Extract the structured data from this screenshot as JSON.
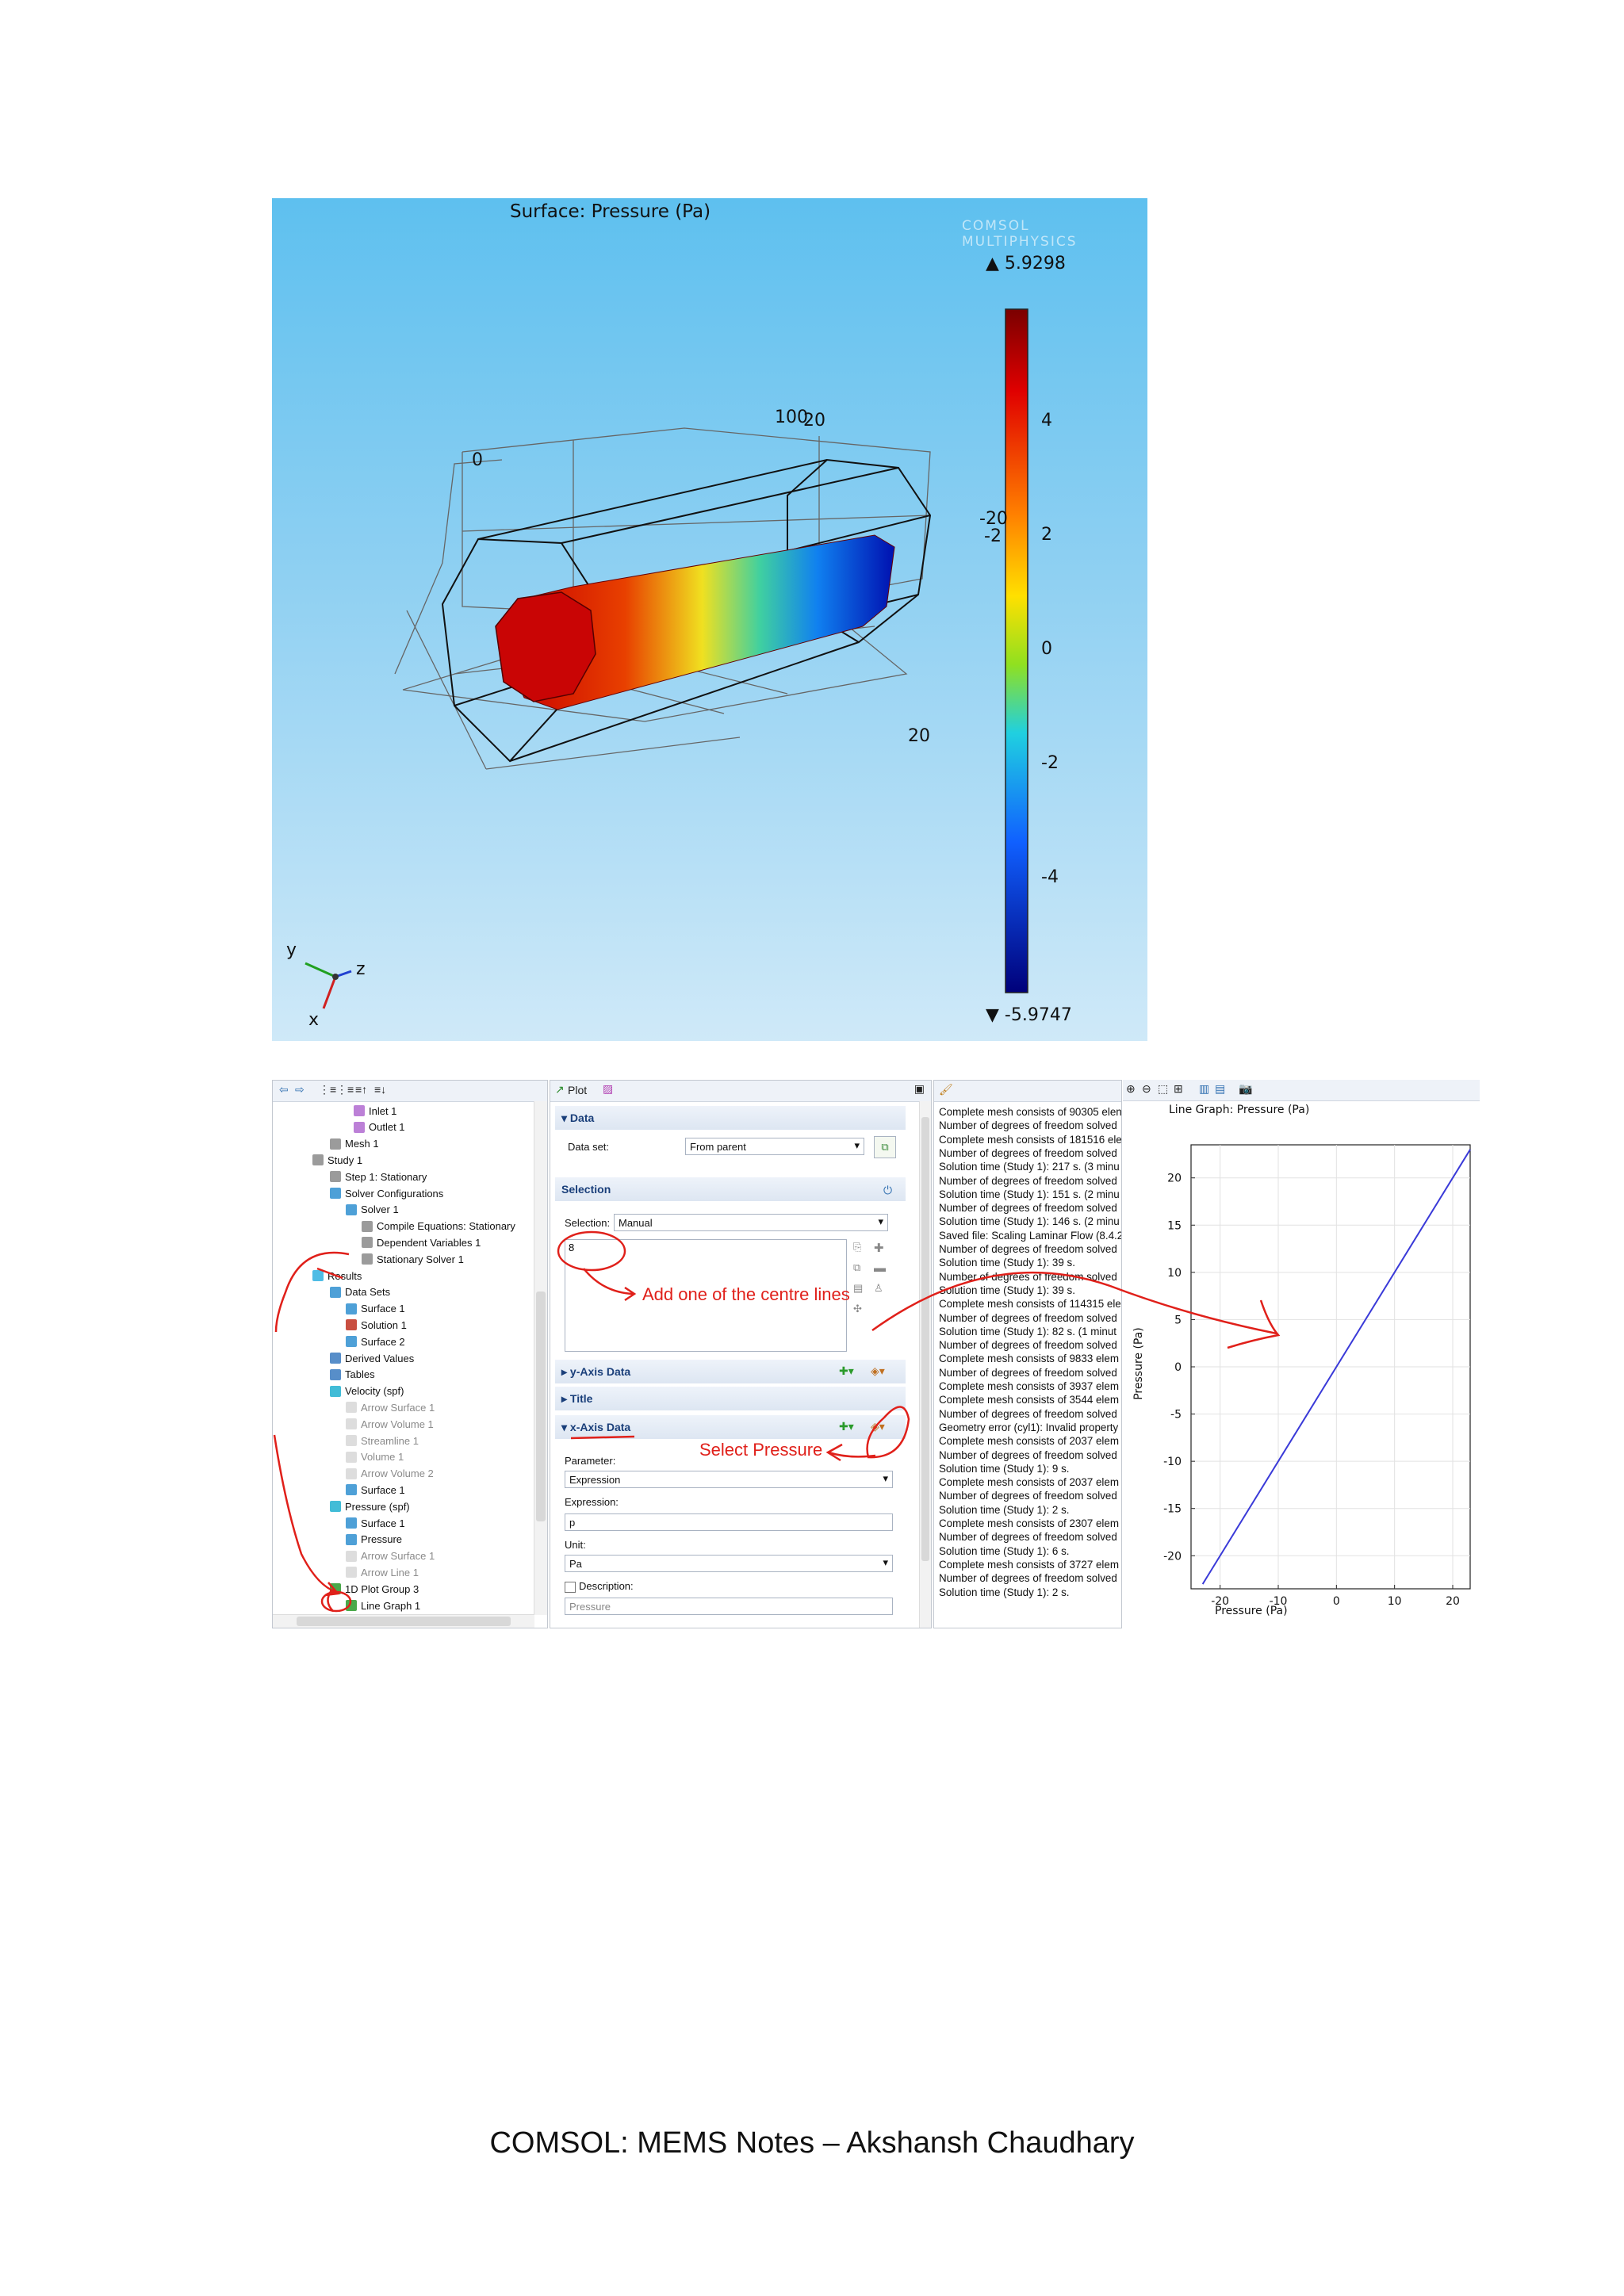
{
  "surface_plot": {
    "title": "Surface: Pressure (Pa)",
    "logo_text": "COMSOL MULTIPHYSICS",
    "max_label": "▲ 5.9298",
    "min_label": "▼ -5.9747",
    "colorbar_ticks": [
      "4",
      "2",
      "0",
      "-2",
      "-4"
    ],
    "axis_labels": {
      "zero": "0",
      "hundred": "100",
      "twenty_top": "20",
      "neg_twenty": "-20",
      "neg_two": "-2",
      "twenty_right": "20"
    },
    "triad": {
      "y": "y",
      "z": "z",
      "x": "x"
    }
  },
  "model_tree": {
    "items": [
      {
        "label": "Inlet 1",
        "dim": false
      },
      {
        "label": "Outlet 1",
        "dim": false
      },
      {
        "label": "Mesh 1",
        "dim": false
      },
      {
        "label": "Study 1",
        "dim": false
      },
      {
        "label": "Step 1: Stationary",
        "dim": false
      },
      {
        "label": "Solver Configurations",
        "dim": false
      },
      {
        "label": "Solver 1",
        "dim": false
      },
      {
        "label": "Compile Equations: Stationary",
        "dim": false
      },
      {
        "label": "Dependent Variables 1",
        "dim": false
      },
      {
        "label": "Stationary Solver 1",
        "dim": false
      },
      {
        "label": "Results",
        "dim": false
      },
      {
        "label": "Data Sets",
        "dim": false
      },
      {
        "label": "Surface 1",
        "dim": false
      },
      {
        "label": "Solution 1",
        "dim": false
      },
      {
        "label": "Surface 2",
        "dim": false
      },
      {
        "label": "Derived Values",
        "dim": false
      },
      {
        "label": "Tables",
        "dim": false
      },
      {
        "label": "Velocity (spf)",
        "dim": false
      },
      {
        "label": "Arrow Surface 1",
        "dim": true
      },
      {
        "label": "Arrow Volume 1",
        "dim": true
      },
      {
        "label": "Streamline 1",
        "dim": true
      },
      {
        "label": "Volume 1",
        "dim": true
      },
      {
        "label": "Arrow Volume 2",
        "dim": true
      },
      {
        "label": "Surface 1",
        "dim": false
      },
      {
        "label": "Pressure (spf)",
        "dim": false
      },
      {
        "label": "Surface 1",
        "dim": false
      },
      {
        "label": "Pressure",
        "dim": false
      },
      {
        "label": "Arrow Surface 1",
        "dim": true
      },
      {
        "label": "Arrow Line 1",
        "dim": true
      },
      {
        "label": "1D Plot Group 3",
        "dim": false
      },
      {
        "label": "Line Graph 1",
        "dim": false
      }
    ]
  },
  "settings": {
    "title": "Plot",
    "data_section": "Data",
    "dataset_label": "Data set:",
    "dataset_value": "From parent",
    "selection_section": "Selection",
    "selection_label": "Selection:",
    "selection_value": "Manual",
    "selection_entry": "8",
    "y_axis_section": "y-Axis Data",
    "title_section": "Title",
    "x_axis_section": "x-Axis Data",
    "parameter_label": "Parameter:",
    "parameter_value": "Expression",
    "expression_label": "Expression:",
    "expression_value": "p",
    "unit_label": "Unit:",
    "unit_value": "Pa",
    "description_label": "Description:",
    "description_value": "Pressure"
  },
  "annotations": {
    "centre_lines": "Add one of the centre lines",
    "select_pressure": "Select Pressure"
  },
  "log": {
    "lines": [
      "Complete mesh consists of 90305 elen",
      "Number of degrees of freedom solved",
      "Complete mesh consists of 181516 ele",
      "Number of degrees of freedom solved",
      "Solution time (Study 1): 217 s. (3 minu",
      "Number of degrees of freedom solved",
      "Solution time (Study 1): 151 s. (2 minu",
      "Number of degrees of freedom solved",
      "Solution time (Study 1): 146 s. (2 minu",
      "Saved file: Scaling Laminar Flow (8.4.2",
      "Number of degrees of freedom solved",
      "Solution time (Study 1): 39 s.",
      "Number of degrees of freedom solved",
      "Solution time (Study 1): 39 s.",
      "Complete mesh consists of 114315 ele",
      "Number of degrees of freedom solved",
      "Solution time (Study 1): 82 s. (1 minut",
      "Number of degrees of freedom solved",
      "Complete mesh consists of 9833 elem",
      "Number of degrees of freedom solved",
      "Complete mesh consists of 3937 elem",
      "Complete mesh consists of 3544 elem",
      "Number of degrees of freedom solved",
      "Geometry error (cyl1): Invalid property",
      "Complete mesh consists of 2037 elem",
      "Number of degrees of freedom solved",
      "Solution time (Study 1): 9 s.",
      "Complete mesh consists of 2037 elem",
      "Number of degrees of freedom solved",
      "Solution time (Study 1): 2 s.",
      "Complete mesh consists of 2307 elem",
      "Number of degrees of freedom solved",
      "Solution time (Study 1): 6 s.",
      "Complete mesh consists of 3727 elem",
      "Number of degrees of freedom solved",
      "Solution time (Study 1): 2 s."
    ]
  },
  "chart_data": {
    "type": "line",
    "title": "Line Graph: Pressure (Pa)",
    "logo_text": "COMSOL MULTIPHYSICS",
    "xlabel": "Pressure (Pa)",
    "ylabel": "Pressure (Pa)",
    "xlim": [
      -25,
      23
    ],
    "ylim": [
      -23.5,
      23.5
    ],
    "x_ticks": [
      -20,
      -10,
      0,
      10,
      20
    ],
    "y_ticks": [
      20,
      15,
      10,
      5,
      0,
      -5,
      -10,
      -15,
      -20
    ],
    "grid": true,
    "series": [
      {
        "x": [
          -23,
          23
        ],
        "y": [
          -23,
          23
        ],
        "color": "#3a3ad8"
      }
    ]
  },
  "caption": "COMSOL: MEMS Notes – Akshansh Chaudhary"
}
